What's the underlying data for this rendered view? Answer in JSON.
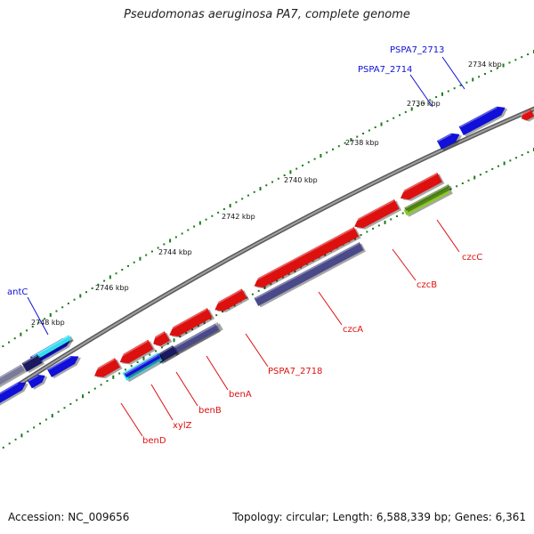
{
  "title": "Pseudomonas aeruginosa PA7, complete genome",
  "footer": {
    "accession": "Accession: NC_009656",
    "topology": "Topology: circular; Length: 6,588,339 bp; Genes: 6,361"
  },
  "ticks": [
    "2734 kbp",
    "2736 kbp",
    "2738 kbp",
    "2740 kbp",
    "2742 kbp",
    "2744 kbp",
    "2746 kbp",
    "2748 kbp"
  ],
  "gene_labels": [
    {
      "text": "PSPA7_2713",
      "strand": "forward"
    },
    {
      "text": "PSPA7_2714",
      "strand": "forward"
    },
    {
      "text": "antC",
      "strand": "forward"
    },
    {
      "text": "czcC",
      "strand": "reverse"
    },
    {
      "text": "czcB",
      "strand": "reverse"
    },
    {
      "text": "czcA",
      "strand": "reverse"
    },
    {
      "text": "PSPA7_2718",
      "strand": "reverse"
    },
    {
      "text": "benA",
      "strand": "reverse"
    },
    {
      "text": "benB",
      "strand": "reverse"
    },
    {
      "text": "xylZ",
      "strand": "reverse"
    },
    {
      "text": "benD",
      "strand": "reverse"
    }
  ],
  "colors": {
    "forward": "#1010d8",
    "reverse": "#dd1010",
    "backbone": "#808080",
    "tick_dots": "#1a7a1a",
    "blast_purple": "#4a4a8a",
    "blast_green": "#88cc22",
    "blast_cyan": "#33ddee",
    "blast_navy": "#1a1a60"
  }
}
